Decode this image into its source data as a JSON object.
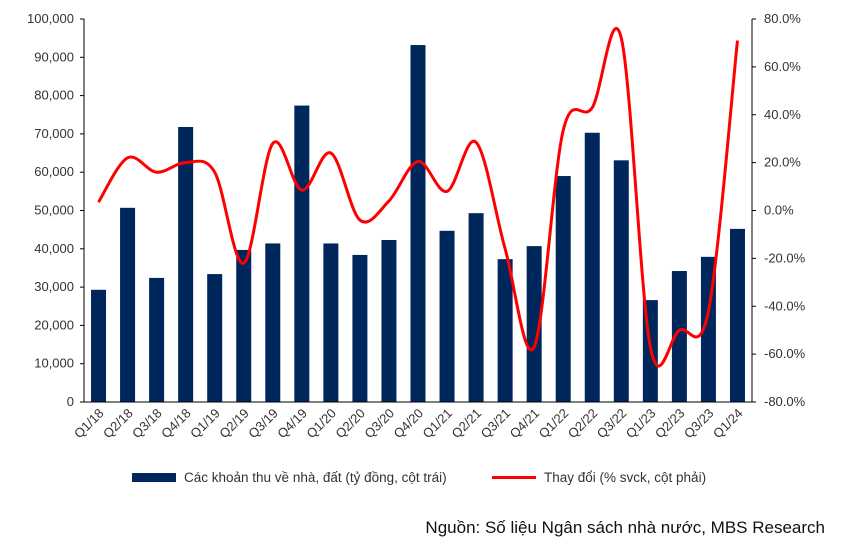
{
  "chart_data": {
    "type": "bar+line",
    "categories": [
      "Q1/18",
      "Q2/18",
      "Q3/18",
      "Q4/18",
      "Q1/19",
      "Q2/19",
      "Q3/19",
      "Q4/19",
      "Q1/20",
      "Q2/20",
      "Q3/20",
      "Q4/20",
      "Q1/21",
      "Q2/21",
      "Q3/21",
      "Q4/21",
      "Q1/22",
      "Q2/22",
      "Q3/22",
      "Q1/23",
      "Q2/23",
      "Q3/23",
      "Q1/24"
    ],
    "series": [
      {
        "name": "Các khoản thu về nhà, đất (tỷ đồng, cột trái)",
        "type": "bar",
        "axis": "left",
        "color": "#00275c",
        "values": [
          29300,
          50700,
          32400,
          71800,
          33400,
          39700,
          41400,
          77400,
          41400,
          38400,
          42300,
          93200,
          44700,
          49300,
          37300,
          40700,
          59000,
          70300,
          63100,
          26600,
          34200,
          37900,
          45200
        ]
      },
      {
        "name": "Thay đổi (% svck, cột phải)",
        "type": "line",
        "axis": "right",
        "color": "#ff0000",
        "values": [
          3.5,
          22,
          16,
          20,
          16,
          -22,
          28,
          8.5,
          24,
          -4,
          4,
          20.5,
          8,
          28.5,
          -16,
          -57,
          33.5,
          43,
          72,
          -57,
          -50,
          -42,
          71
        ]
      }
    ],
    "left_axis": {
      "min": 0,
      "max": 100000,
      "ticks": [
        "0",
        "10,000",
        "20,000",
        "30,000",
        "40,000",
        "50,000",
        "60,000",
        "70,000",
        "80,000",
        "90,000",
        "100,000"
      ]
    },
    "right_axis": {
      "min": -80,
      "max": 80,
      "ticks": [
        "-80.0%",
        "-60.0%",
        "-40.0%",
        "-20.0%",
        "0.0%",
        "20.0%",
        "40.0%",
        "60.0%",
        "80.0%"
      ]
    },
    "legend_position": "bottom",
    "grid": false
  },
  "legend": {
    "bar_label": "Các khoản thu về nhà, đất (tỷ đồng, cột trái)",
    "line_label": "Thay đổi (% svck, cột phải)"
  },
  "source": "Nguồn: Số liệu Ngân sách nhà nước, MBS Research"
}
